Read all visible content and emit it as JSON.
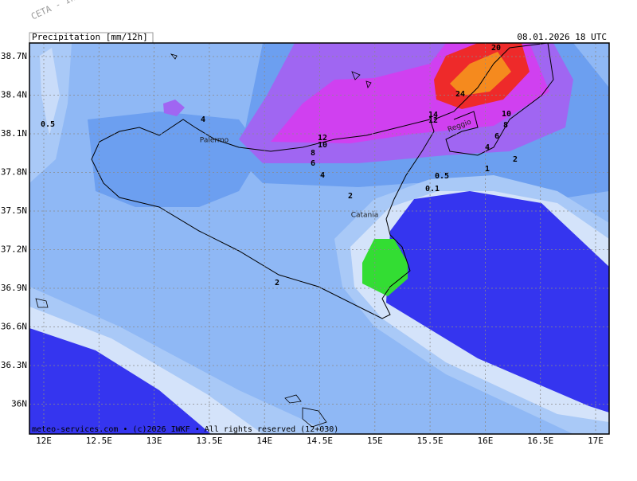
{
  "header": {
    "watermark": "CETA - In",
    "left": "Precipitation [mm/12h]",
    "right": "08.01.2026 18 UTC"
  },
  "lat_labels": [
    "38.7N",
    "38.4N",
    "38.1N",
    "37.8N",
    "37.5N",
    "37.2N",
    "36.9N",
    "36.6N",
    "36.3N",
    "36N"
  ],
  "lon_labels": [
    "12E",
    "12.5E",
    "13E",
    "13.5E",
    "14E",
    "14.5E",
    "15E",
    "15.5E",
    "16E",
    "16.5E",
    "17E"
  ],
  "contour_labels": [
    "0.5",
    "4",
    "12",
    "10",
    "8",
    "6",
    "4",
    "2",
    "14",
    "12",
    "24",
    "20",
    "10",
    "8",
    "6",
    "4",
    "2",
    "1",
    "0.5",
    "0.1",
    "2"
  ],
  "places": [
    "Palermo",
    "Catania",
    "Reggio"
  ],
  "footer": "meteo-services.com • (c)2026 IWKF • All rights reserved (12+030)"
}
